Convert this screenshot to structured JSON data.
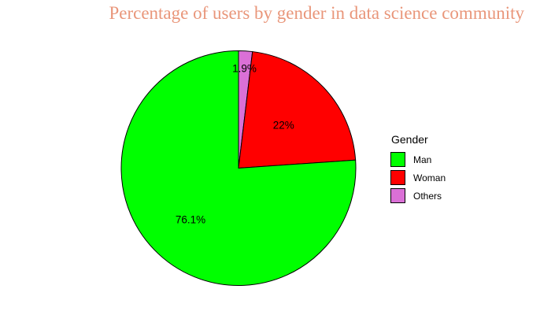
{
  "chart_data": {
    "type": "pie",
    "title": "Percentage of users by gender in data science community",
    "categories": [
      "Man",
      "Woman",
      "Others"
    ],
    "values": [
      76.1,
      22,
      1.9
    ],
    "labels": [
      "76.1%",
      "22%",
      "1.9%"
    ],
    "colors": [
      "#00ff00",
      "#ff0000",
      "#da70d6"
    ],
    "legend": {
      "title": "Gender",
      "placement": "right"
    }
  }
}
